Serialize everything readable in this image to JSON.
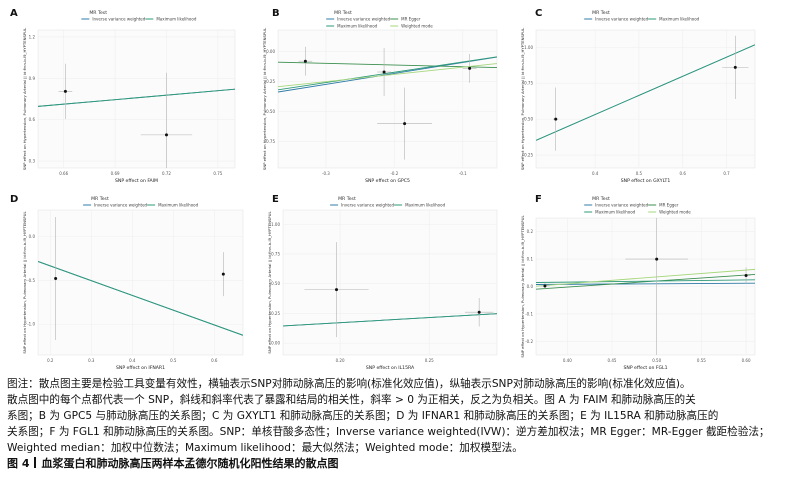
{
  "chart_data": [
    {
      "type": "scatter",
      "panel": "A",
      "xlabel": "SNP effect on FAIM",
      "ylabel": "SNP effect on Hypertension, Pulmonary Arterial || id:finn-b-I9_HYPTENSPUL",
      "legend_title": "MR Test",
      "legend": [
        "Inverse variance weighted",
        "Maximum likelihood"
      ],
      "xticks": [
        "0.66",
        "0.69",
        "0.72",
        "0.75"
      ],
      "yticks": [
        "1.2",
        "0.9",
        "0.6",
        "0.3"
      ],
      "xlim": [
        0.645,
        0.76
      ],
      "ylim": [
        0.25,
        1.25
      ],
      "points": [
        {
          "x": 0.661,
          "y": 0.805,
          "xerr": 0.004,
          "yerr": 0.2
        },
        {
          "x": 0.72,
          "y": 0.49,
          "xerr": 0.015,
          "yerr": 0.45
        }
      ],
      "lines": [
        {
          "name": "Inverse variance weighted",
          "slope": 1.08,
          "intercept": 0.0
        },
        {
          "name": "Maximum likelihood",
          "slope": 1.08,
          "intercept": 0.0
        }
      ]
    },
    {
      "type": "scatter",
      "panel": "B",
      "xlabel": "SNP effect on GPC5",
      "ylabel": "SNP effect on Hypertension, Pulmonary Arterial || id:finn-b-I9_HYPTENSPUL",
      "legend_title": "MR Test",
      "legend": [
        "Inverse variance weighted",
        "MR Egger",
        "Maximum likelihood",
        "Weighted mode"
      ],
      "xticks": [
        "-0.3",
        "-0.2",
        "-0.1"
      ],
      "yticks": [
        "0.00",
        "-0.25",
        "-0.50",
        "-0.75"
      ],
      "xlim": [
        -0.37,
        -0.05
      ],
      "ylim": [
        -0.97,
        0.18
      ],
      "points": [
        {
          "x": -0.33,
          "y": -0.08,
          "xerr": 0.01,
          "yerr": 0.12
        },
        {
          "x": -0.215,
          "y": -0.17,
          "xerr": 0.01,
          "yerr": 0.2
        },
        {
          "x": -0.185,
          "y": -0.6,
          "xerr": 0.04,
          "yerr": 0.3
        },
        {
          "x": -0.09,
          "y": -0.14,
          "xerr": 0.01,
          "yerr": 0.12
        }
      ],
      "lines": [
        {
          "name": "Inverse variance weighted",
          "slope": 0.91,
          "intercept": 0.0
        },
        {
          "name": "MR Egger",
          "slope": -0.14,
          "intercept": -0.14
        },
        {
          "name": "Maximum likelihood",
          "slope": 0.86,
          "intercept": 0.0
        },
        {
          "name": "Weighted mode",
          "slope": 0.6,
          "intercept": -0.07
        }
      ]
    },
    {
      "type": "scatter",
      "panel": "C",
      "xlabel": "SNP effect on GXYLT1",
      "ylabel": "SNP effect on Hypertension, Pulmonary Arterial || id:finn-b-I9_HYPTENSPUL",
      "legend_title": "MR Test",
      "legend": [
        "Inverse variance weighted",
        "Maximum likelihood"
      ],
      "xticks": [
        "0.4",
        "0.5",
        "0.6",
        "0.7"
      ],
      "yticks": [
        "1.00",
        "0.75",
        "0.50",
        "0.25"
      ],
      "xlim": [
        0.265,
        0.765
      ],
      "ylim": [
        0.16,
        1.12
      ],
      "points": [
        {
          "x": 0.31,
          "y": 0.5,
          "xerr": 0.006,
          "yerr": 0.22
        },
        {
          "x": 0.72,
          "y": 0.86,
          "xerr": 0.03,
          "yerr": 0.22
        }
      ],
      "lines": [
        {
          "name": "Inverse variance weighted",
          "slope": 1.33,
          "intercept": 0.0
        },
        {
          "name": "Maximum likelihood",
          "slope": 1.33,
          "intercept": 0.0
        }
      ]
    },
    {
      "type": "scatter",
      "panel": "D",
      "xlabel": "SNP effect on IFNAR1",
      "ylabel": "SNP effect on Hypertension, Pulmonary Arterial || id:finn-b-I9_HYPTENSPUL",
      "legend_title": "MR Test",
      "legend": [
        "Inverse variance weighted",
        "Maximum likelihood"
      ],
      "xticks": [
        "0.2",
        "0.3",
        "0.4",
        "0.5",
        "0.6"
      ],
      "yticks": [
        "0.0",
        "-0.5",
        "-1.0"
      ],
      "xlim": [
        0.17,
        0.67
      ],
      "ylim": [
        -1.35,
        0.3
      ],
      "points": [
        {
          "x": 0.213,
          "y": -0.48,
          "xerr": 0.003,
          "yerr": 0.7
        },
        {
          "x": 0.622,
          "y": -0.43,
          "xerr": 0.003,
          "yerr": 0.25
        }
      ],
      "lines": [
        {
          "name": "Inverse variance weighted",
          "slope": -1.68,
          "intercept": 0.0
        },
        {
          "name": "Maximum likelihood",
          "slope": -1.68,
          "intercept": 0.0
        }
      ]
    },
    {
      "type": "scatter",
      "panel": "E",
      "xlabel": "SNP effect on IL15RA",
      "ylabel": "SNP effect on Hypertension, Pulmonary Arterial || id:finn-b-I9_HYPTENSPUL",
      "legend_title": "MR Test",
      "legend": [
        "Inverse variance weighted",
        "Maximum likelihood"
      ],
      "xticks": [
        "0.20",
        "0.25"
      ],
      "yticks": [
        "1.00",
        "0.75",
        "0.50",
        "0.25",
        "0.00"
      ],
      "xlim": [
        0.168,
        0.288
      ],
      "ylim": [
        -0.1,
        1.12
      ],
      "points": [
        {
          "x": 0.198,
          "y": 0.45,
          "xerr": 0.018,
          "yerr": 0.4
        },
        {
          "x": 0.278,
          "y": 0.26,
          "xerr": 0.008,
          "yerr": 0.12
        }
      ],
      "lines": [
        {
          "name": "Inverse variance weighted",
          "slope": 0.86,
          "intercept": 0.0
        },
        {
          "name": "Maximum likelihood",
          "slope": 0.86,
          "intercept": 0.0
        }
      ]
    },
    {
      "type": "scatter",
      "panel": "F",
      "xlabel": "SNP effect on FGL1",
      "ylabel": "SNP effect on Hypertension, Pulmonary Arterial || id:finn-b-I9_HYPTENSPUL",
      "legend_title": "MR Test",
      "legend": [
        "Inverse variance weighted",
        "MR Egger",
        "Maximum likelihood",
        "Weighted mode"
      ],
      "xticks": [
        "0.40",
        "0.45",
        "0.50",
        "0.55",
        "0.60"
      ],
      "yticks": [
        "0.2",
        "0.1",
        "0.0",
        "-0.1",
        "-0.2"
      ],
      "xlim": [
        0.365,
        0.61
      ],
      "ylim": [
        -0.25,
        0.25
      ],
      "points": [
        {
          "x": 0.375,
          "y": 0.002,
          "xerr": 0.005,
          "yerr": 0.012
        },
        {
          "x": 0.5,
          "y": 0.1,
          "xerr": 0.035,
          "yerr": 0.35
        },
        {
          "x": 0.6,
          "y": 0.04,
          "xerr": 0.005,
          "yerr": 0.03
        }
      ],
      "lines": [
        {
          "name": "Inverse variance weighted",
          "slope": 0.02,
          "intercept": 0.0
        },
        {
          "name": "MR Egger",
          "slope": 0.22,
          "intercept": -0.09
        },
        {
          "name": "Maximum likelihood",
          "slope": 0.04,
          "intercept": 0.0
        },
        {
          "name": "Weighted mode",
          "slope": 0.25,
          "intercept": -0.09
        }
      ]
    }
  ],
  "colors": {
    "Inverse variance weighted": "#2f7ca8",
    "MR Egger": "#3b8f4f",
    "Maximum likelihood": "#2e9a78",
    "Weighted mode": "#a6d77c"
  },
  "caption": {
    "note_lines": [
      "图注：散点图主要是检验工具变量有效性，横轴表示SNP对肺动脉高压的影响(标准化效应值)，纵轴表示SNP对肺动脉高压的影响(标准化效应值)。",
      "散点图中的每个点都代表一个 SNP，斜线和斜率代表了暴露和结局的相关性，斜率 > 0 为正相关，反之为负相关。图 A 为 FAIM 和肺动脉高压的关",
      "系图；B 为 GPC5 与肺动脉高压的关系图；C 为 GXYLT1 和肺动脉高压的关系图；D 为 IFNAR1 和肺动脉高压的关系图；E 为 IL15RA 和肺动脉高压的",
      "关系图；F 为 FGL1 和肺动脉高压的关系图。SNP：单核苷酸多态性；Inverse variance weighted(IVW)：逆方差加权法；MR Egger：MR-Egger 截距检验法；",
      "Weighted median：加权中位数法；Maximum likelihood：最大似然法；Weighted mode：加权模型法。"
    ],
    "figure_label": "图 4",
    "figure_title": "血浆蛋白和肺动脉高压两样本孟德尔随机化阳性结果的散点图"
  }
}
